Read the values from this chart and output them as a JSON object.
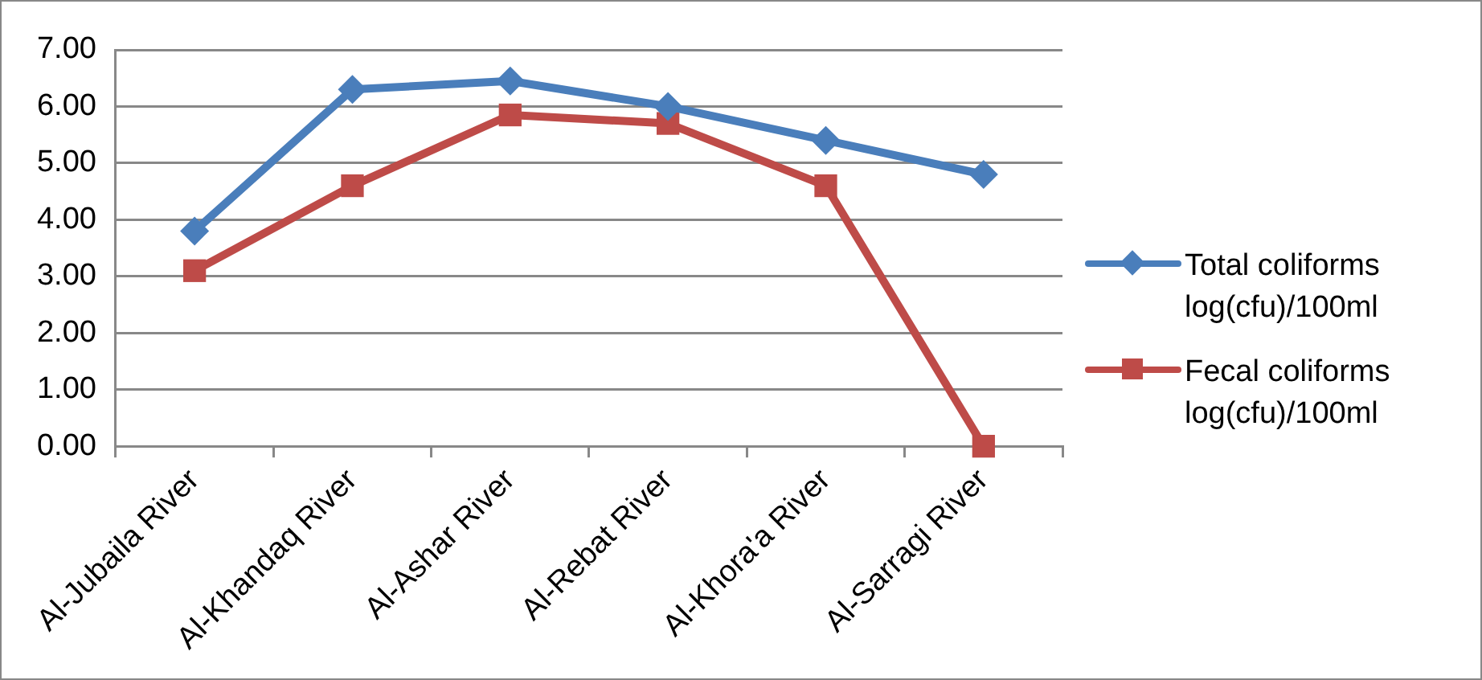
{
  "chart_data": {
    "type": "line",
    "categories": [
      "Al-Jubaila River",
      "Al-Khandaq River",
      "Al-Ashar River",
      "Al-Rebat River",
      "Al-Khora'a River",
      "Al-Sarragi River"
    ],
    "series": [
      {
        "name": "Total coliforms log(cfu)/100ml",
        "color": "#4a7ebb",
        "marker": "diamond",
        "values": [
          3.8,
          6.3,
          6.45,
          6.0,
          5.4,
          4.8
        ]
      },
      {
        "name": "Fecal coliforms log(cfu)/100ml",
        "color": "#be4b48",
        "marker": "square",
        "values": [
          3.1,
          4.6,
          5.85,
          5.7,
          4.6,
          0
        ]
      }
    ],
    "ylim": [
      0,
      7
    ],
    "yticks": [
      {
        "value": 0,
        "label": "0.00"
      },
      {
        "value": 1,
        "label": "1.00"
      },
      {
        "value": 2,
        "label": "2.00"
      },
      {
        "value": 3,
        "label": "3.00"
      },
      {
        "value": 4,
        "label": "4.00"
      },
      {
        "value": 5,
        "label": "5.00"
      },
      {
        "value": 6,
        "label": "6.00"
      },
      {
        "value": 7,
        "label": "7.00"
      }
    ],
    "grid": "y",
    "legend": "right"
  }
}
